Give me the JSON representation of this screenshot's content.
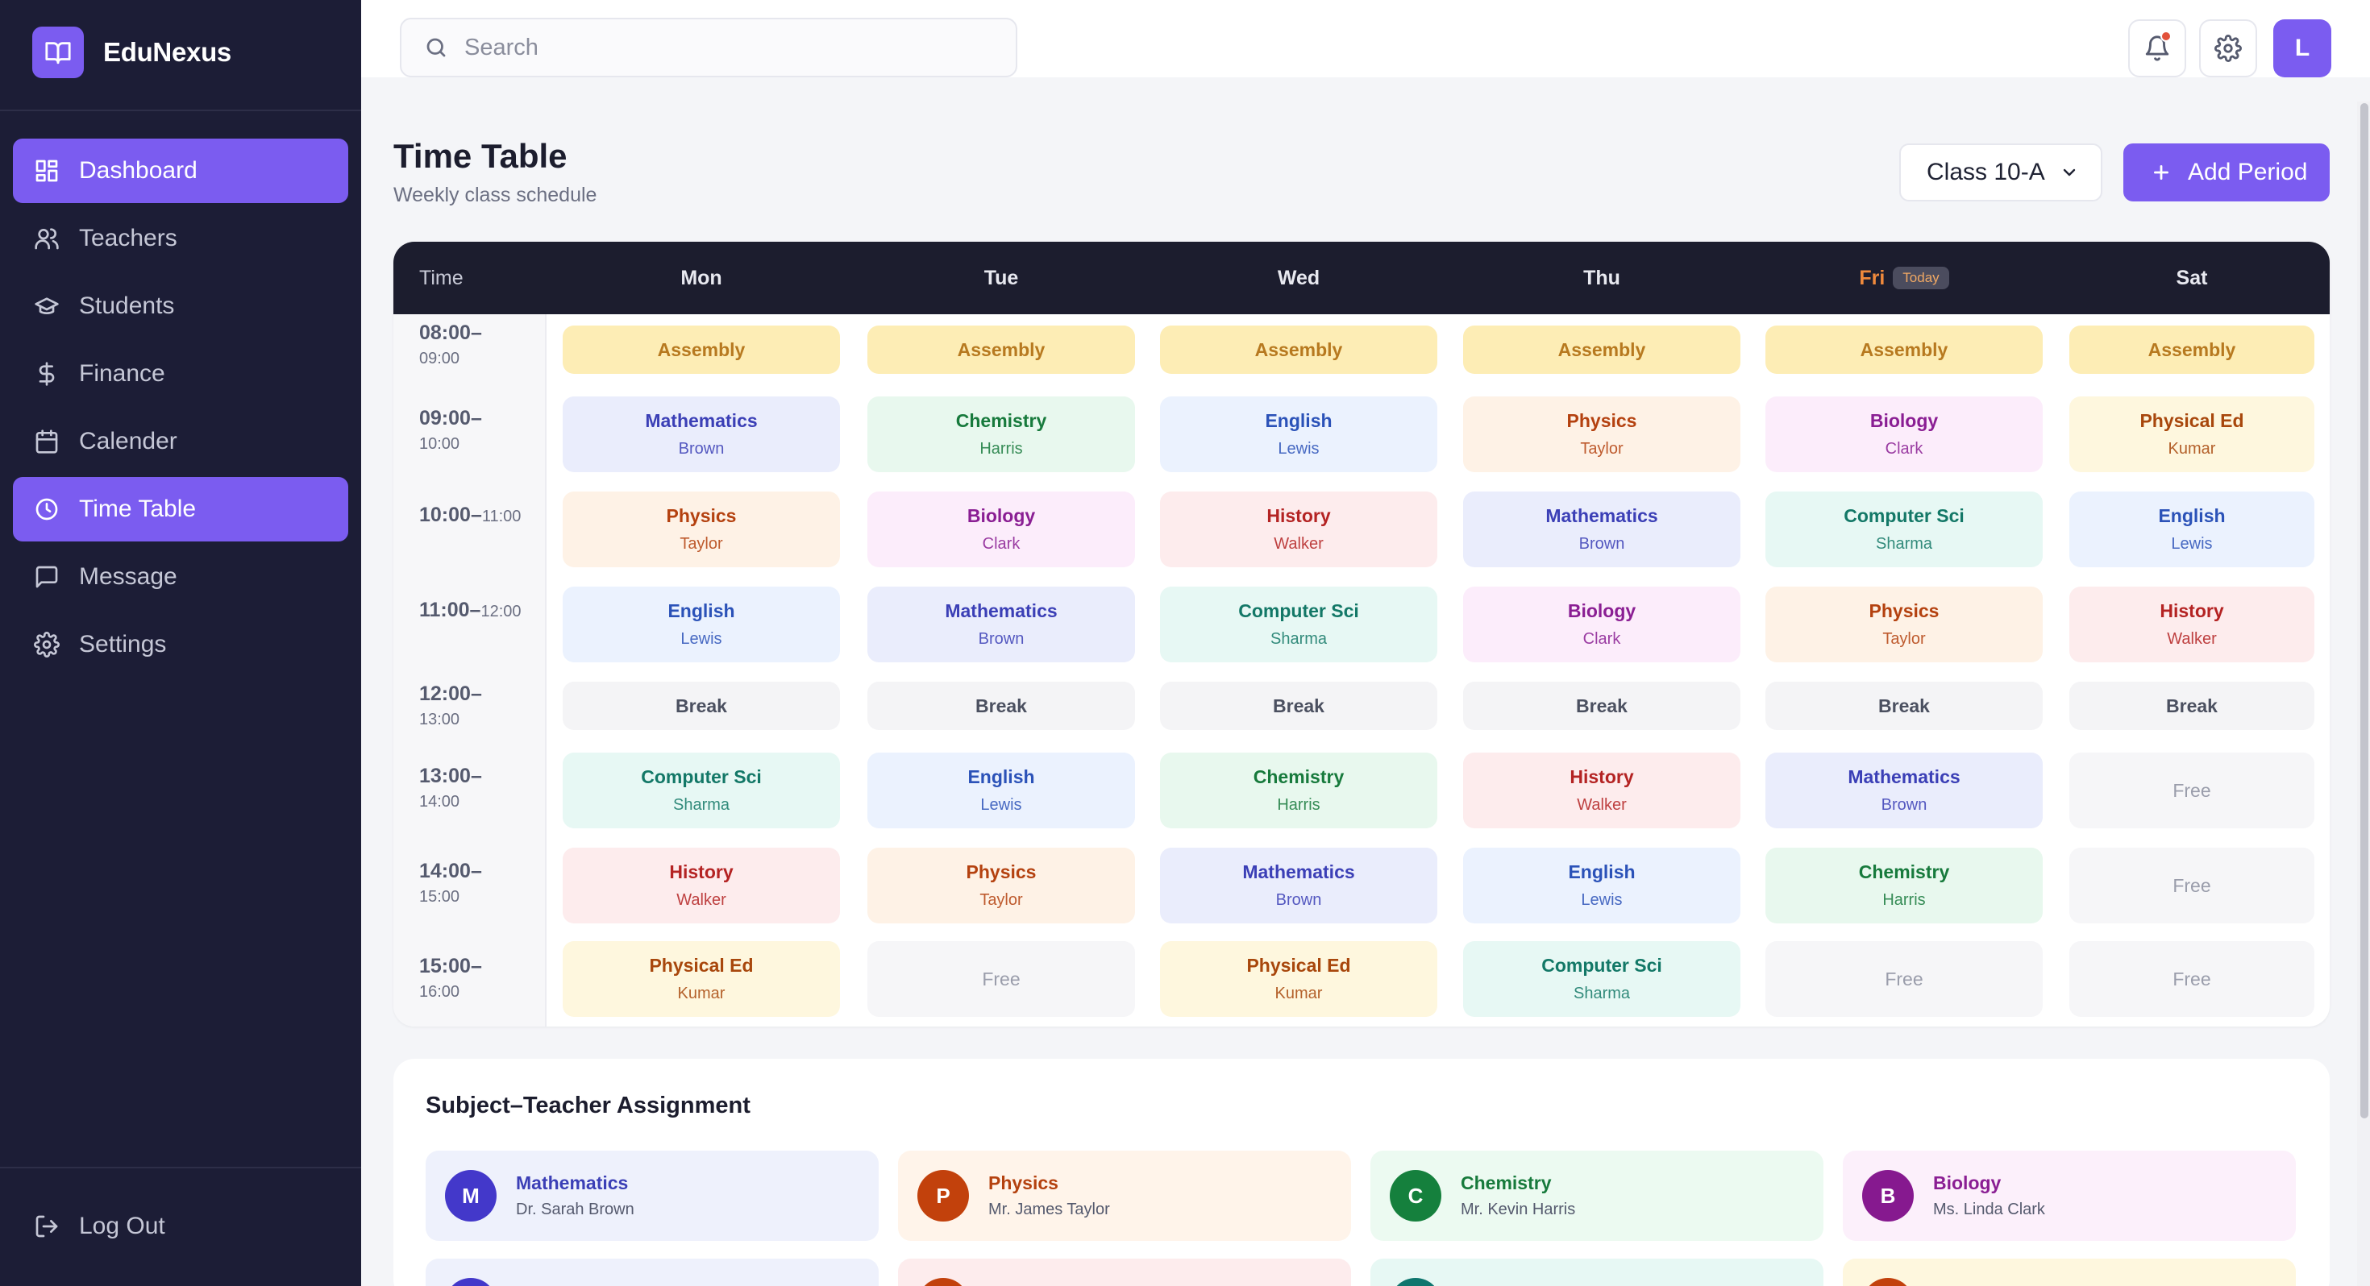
{
  "app": {
    "name": "EduNexus"
  },
  "sidebar": {
    "items": [
      {
        "label": "Dashboard",
        "icon": "dashboard-icon",
        "active": true
      },
      {
        "label": "Teachers",
        "icon": "users-icon",
        "active": false
      },
      {
        "label": "Students",
        "icon": "graduation-cap-icon",
        "active": false
      },
      {
        "label": "Finance",
        "icon": "dollar-icon",
        "active": false
      },
      {
        "label": "Calender",
        "icon": "calendar-icon",
        "active": false
      },
      {
        "label": "Time Table",
        "icon": "clock-icon",
        "active": true
      },
      {
        "label": "Message",
        "icon": "message-icon",
        "active": false
      },
      {
        "label": "Settings",
        "icon": "gear-icon",
        "active": false
      }
    ],
    "logout_label": "Log Out"
  },
  "topbar": {
    "search_placeholder": "Search",
    "avatar_initial": "L"
  },
  "page": {
    "title": "Time Table",
    "subtitle": "Weekly class schedule",
    "class_select": "Class 10-A",
    "add_label": "Add Period"
  },
  "timetable": {
    "time_header": "Time",
    "today_badge": "Today",
    "days": [
      "Mon",
      "Tue",
      "Wed",
      "Thu",
      "Fri",
      "Sat"
    ],
    "slots": [
      {
        "start": "08:00–",
        "end": "09:00"
      },
      {
        "start": "09:00–",
        "end": "10:00"
      },
      {
        "start": "10:00–",
        "end": "11:00"
      },
      {
        "start": "11:00–",
        "end": "12:00"
      },
      {
        "start": "12:00–",
        "end": "13:00"
      },
      {
        "start": "13:00–",
        "end": "14:00"
      },
      {
        "start": "14:00–",
        "end": "15:00"
      },
      {
        "start": "15:00–",
        "end": "16:00"
      }
    ],
    "rows": [
      [
        {
          "subject": "Assembly",
          "teacher": ""
        },
        {
          "subject": "Assembly",
          "teacher": ""
        },
        {
          "subject": "Assembly",
          "teacher": ""
        },
        {
          "subject": "Assembly",
          "teacher": ""
        },
        {
          "subject": "Assembly",
          "teacher": ""
        },
        {
          "subject": "Assembly",
          "teacher": ""
        }
      ],
      [
        {
          "subject": "Mathematics",
          "teacher": "Brown"
        },
        {
          "subject": "Chemistry",
          "teacher": "Harris"
        },
        {
          "subject": "English",
          "teacher": "Lewis"
        },
        {
          "subject": "Physics",
          "teacher": "Taylor"
        },
        {
          "subject": "Biology",
          "teacher": "Clark"
        },
        {
          "subject": "Physical Ed",
          "teacher": "Kumar"
        }
      ],
      [
        {
          "subject": "Physics",
          "teacher": "Taylor"
        },
        {
          "subject": "Biology",
          "teacher": "Clark"
        },
        {
          "subject": "History",
          "teacher": "Walker"
        },
        {
          "subject": "Mathematics",
          "teacher": "Brown"
        },
        {
          "subject": "Computer Sci",
          "teacher": "Sharma"
        },
        {
          "subject": "English",
          "teacher": "Lewis"
        }
      ],
      [
        {
          "subject": "English",
          "teacher": "Lewis"
        },
        {
          "subject": "Mathematics",
          "teacher": "Brown"
        },
        {
          "subject": "Computer Sci",
          "teacher": "Sharma"
        },
        {
          "subject": "Biology",
          "teacher": "Clark"
        },
        {
          "subject": "Physics",
          "teacher": "Taylor"
        },
        {
          "subject": "History",
          "teacher": "Walker"
        }
      ],
      [
        {
          "subject": "Break",
          "teacher": ""
        },
        {
          "subject": "Break",
          "teacher": ""
        },
        {
          "subject": "Break",
          "teacher": ""
        },
        {
          "subject": "Break",
          "teacher": ""
        },
        {
          "subject": "Break",
          "teacher": ""
        },
        {
          "subject": "Break",
          "teacher": ""
        }
      ],
      [
        {
          "subject": "Computer Sci",
          "teacher": "Sharma"
        },
        {
          "subject": "English",
          "teacher": "Lewis"
        },
        {
          "subject": "Chemistry",
          "teacher": "Harris"
        },
        {
          "subject": "History",
          "teacher": "Walker"
        },
        {
          "subject": "Mathematics",
          "teacher": "Brown"
        },
        {
          "subject": "Free",
          "teacher": ""
        }
      ],
      [
        {
          "subject": "History",
          "teacher": "Walker"
        },
        {
          "subject": "Physics",
          "teacher": "Taylor"
        },
        {
          "subject": "Mathematics",
          "teacher": "Brown"
        },
        {
          "subject": "English",
          "teacher": "Lewis"
        },
        {
          "subject": "Chemistry",
          "teacher": "Harris"
        },
        {
          "subject": "Free",
          "teacher": ""
        }
      ],
      [
        {
          "subject": "Physical Ed",
          "teacher": "Kumar"
        },
        {
          "subject": "Free",
          "teacher": ""
        },
        {
          "subject": "Physical Ed",
          "teacher": "Kumar"
        },
        {
          "subject": "Computer Sci",
          "teacher": "Sharma"
        },
        {
          "subject": "Free",
          "teacher": ""
        },
        {
          "subject": "Free",
          "teacher": ""
        }
      ]
    ]
  },
  "assignments": {
    "title": "Subject–Teacher Assignment",
    "items": [
      {
        "initial": "M",
        "subject": "Mathematics",
        "teacher": "Dr. Sarah Brown",
        "color": "#4338ca",
        "bg": "#eef1fc",
        "text": "#3b3fb6"
      },
      {
        "initial": "P",
        "subject": "Physics",
        "teacher": "Mr. James Taylor",
        "color": "#c2410c",
        "bg": "#fff4ea",
        "text": "#b4410f"
      },
      {
        "initial": "C",
        "subject": "Chemistry",
        "teacher": "Mr. Kevin Harris",
        "color": "#15803d",
        "bg": "#ecfaf1",
        "text": "#177a3c"
      },
      {
        "initial": "B",
        "subject": "Biology",
        "teacher": "Ms. Linda Clark",
        "color": "#86198f",
        "bg": "#fcf0fb",
        "text": "#8a1e93"
      }
    ]
  },
  "subject_colors": {
    "Assembly": {
      "bg": "#fdedb5",
      "text": "#b7791f"
    },
    "Break": {
      "bg": "#f4f4f6",
      "text": "#4b5060"
    },
    "Free": {
      "bg": "#f6f6f8",
      "text": "#9a9dab"
    },
    "Mathematics": {
      "bg": "#eaedfc",
      "text": "#3b3fb6"
    },
    "Chemistry": {
      "bg": "#e8f8ee",
      "text": "#177a3c"
    },
    "English": {
      "bg": "#ebf2fe",
      "text": "#2b52b8"
    },
    "Physics": {
      "bg": "#fef2e6",
      "text": "#b4410f"
    },
    "Biology": {
      "bg": "#fcedfb",
      "text": "#8a1e93"
    },
    "Physical Ed": {
      "bg": "#fef7de",
      "text": "#a8470c"
    },
    "History": {
      "bg": "#fdeced",
      "text": "#b42323"
    },
    "Computer Sci": {
      "bg": "#e7f8f4",
      "text": "#137867"
    }
  }
}
